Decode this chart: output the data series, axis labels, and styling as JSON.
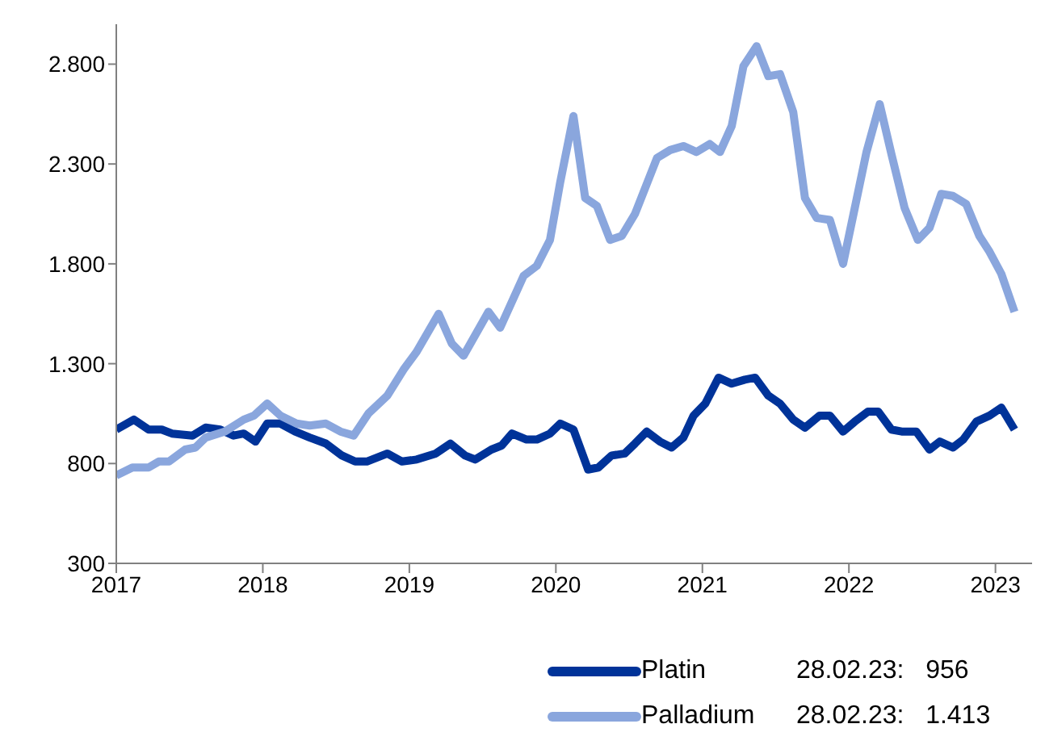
{
  "chart_data": {
    "type": "line",
    "xlim": [
      2017,
      2023.25
    ],
    "xticks": [
      2017,
      2018,
      2019,
      2020,
      2021,
      2022,
      2023
    ],
    "ylim": [
      300,
      3000
    ],
    "yticks": [
      300,
      800,
      {
        "value": 1300,
        "label": "1.300"
      },
      {
        "value": 1800,
        "label": "1.800"
      },
      {
        "value": 2300,
        "label": "2.300"
      },
      {
        "value": 2800,
        "label": "2.800"
      }
    ],
    "grid": false,
    "legend": "bottom right",
    "marker": "none",
    "line_style": "solid",
    "annotations": [
      "28.02.23:   956",
      "28.02.23:   1.413"
    ],
    "series": [
      {
        "name": "Platin",
        "color": "#003399",
        "x": [
          2017.0,
          2017.12,
          2017.22,
          2017.31,
          2017.38,
          2017.52,
          2017.61,
          2017.71,
          2017.8,
          2017.87,
          2017.95,
          2018.03,
          2018.12,
          2018.22,
          2018.32,
          2018.43,
          2018.54,
          2018.63,
          2018.71,
          2018.85,
          2018.95,
          2019.05,
          2019.18,
          2019.28,
          2019.38,
          2019.45,
          2019.56,
          2019.63,
          2019.7,
          2019.8,
          2019.87,
          2019.96,
          2020.03,
          2020.12,
          2020.22,
          2020.29,
          2020.38,
          2020.47,
          2020.54,
          2020.62,
          2020.71,
          2020.79,
          2020.87,
          2020.94,
          2021.02,
          2021.11,
          2021.2,
          2021.29,
          2021.36,
          2021.45,
          2021.53,
          2021.62,
          2021.7,
          2021.8,
          2021.87,
          2021.96,
          2022.04,
          2022.13,
          2022.2,
          2022.29,
          2022.36,
          2022.46,
          2022.55,
          2022.62,
          2022.71,
          2022.78,
          2022.87,
          2022.96,
          2023.04,
          2023.13
        ],
        "values": [
          970,
          1020,
          970,
          970,
          950,
          940,
          980,
          970,
          940,
          950,
          910,
          1000,
          1000,
          960,
          930,
          900,
          840,
          810,
          810,
          850,
          810,
          820,
          850,
          900,
          840,
          820,
          870,
          890,
          950,
          920,
          920,
          950,
          1000,
          970,
          770,
          780,
          840,
          850,
          900,
          960,
          910,
          880,
          930,
          1040,
          1100,
          1230,
          1200,
          1220,
          1230,
          1140,
          1100,
          1020,
          980,
          1040,
          1040,
          960,
          1010,
          1060,
          1060,
          970,
          960,
          960,
          870,
          910,
          880,
          920,
          1010,
          1040,
          1080,
          970
        ]
      },
      {
        "name": "Palladium",
        "color": "#8aa6dd",
        "x": [
          2017.0,
          2017.11,
          2017.22,
          2017.29,
          2017.36,
          2017.47,
          2017.54,
          2017.61,
          2017.74,
          2017.87,
          2017.94,
          2018.03,
          2018.12,
          2018.23,
          2018.32,
          2018.43,
          2018.53,
          2018.62,
          2018.72,
          2018.85,
          2018.96,
          2019.05,
          2019.2,
          2019.29,
          2019.37,
          2019.54,
          2019.62,
          2019.78,
          2019.87,
          2019.96,
          2020.03,
          2020.12,
          2020.2,
          2020.28,
          2020.37,
          2020.45,
          2020.54,
          2020.69,
          2020.78,
          2020.87,
          2020.96,
          2021.05,
          2021.12,
          2021.2,
          2021.28,
          2021.37,
          2021.45,
          2021.53,
          2021.62,
          2021.7,
          2021.78,
          2021.87,
          2021.96,
          2022.04,
          2022.12,
          2022.21,
          2022.29,
          2022.38,
          2022.47,
          2022.55,
          2022.63,
          2022.71,
          2022.8,
          2022.89,
          2022.96,
          2023.04,
          2023.13
        ],
        "values": [
          740,
          780,
          780,
          810,
          810,
          870,
          880,
          930,
          960,
          1020,
          1040,
          1100,
          1040,
          1000,
          990,
          1000,
          960,
          940,
          1050,
          1140,
          1270,
          1360,
          1550,
          1400,
          1340,
          1560,
          1480,
          1740,
          1790,
          1920,
          2210,
          2540,
          2130,
          2090,
          1920,
          1940,
          2050,
          2330,
          2370,
          2390,
          2360,
          2400,
          2360,
          2490,
          2790,
          2890,
          2740,
          2750,
          2560,
          2130,
          2030,
          2020,
          1800,
          2080,
          2360,
          2600,
          2350,
          2080,
          1920,
          1980,
          2150,
          2140,
          2100,
          1940,
          1860,
          1750,
          1560
        ]
      }
    ]
  }
}
